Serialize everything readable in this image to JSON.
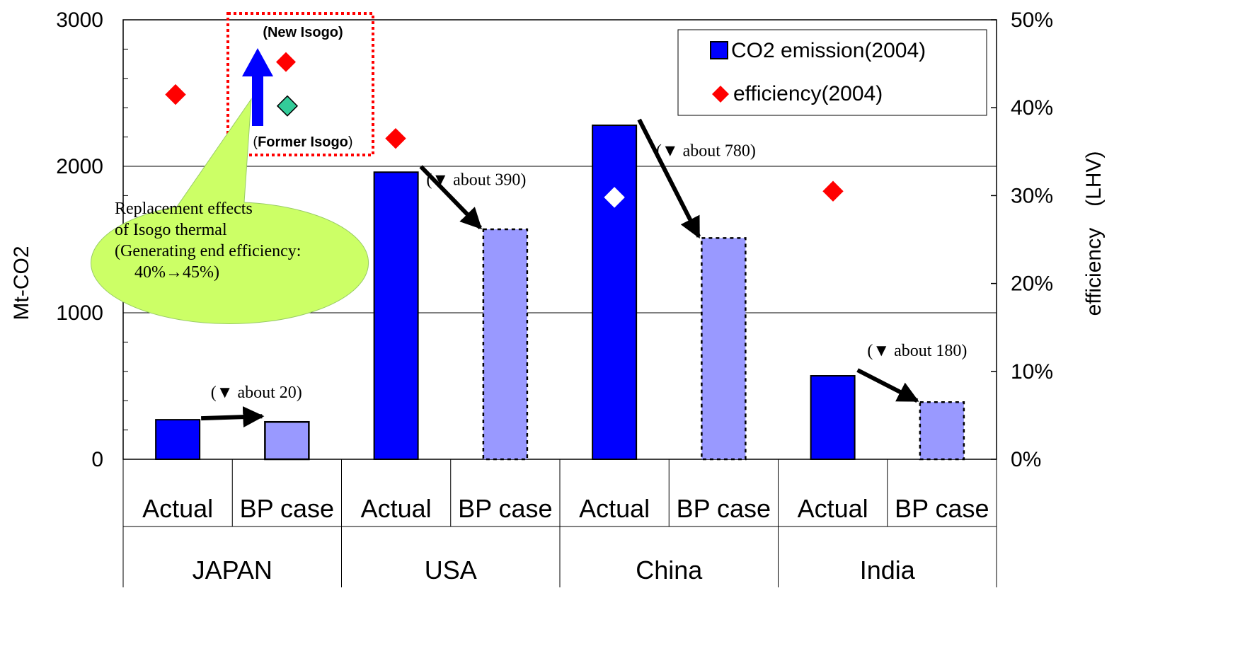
{
  "chart_data": {
    "type": "bar",
    "left_axis": {
      "label": "Mt-CO2",
      "range": [
        0,
        3000
      ],
      "ticks": [
        "0",
        "1000",
        "2000",
        "3000"
      ]
    },
    "right_axis": {
      "label": "efficiency　(LHV)",
      "range": [
        0,
        0.5
      ],
      "ticks": [
        "0%",
        "10%",
        "20%",
        "30%",
        "40%",
        "50%"
      ]
    },
    "group_labels": [
      "JAPAN",
      "USA",
      "China",
      "India"
    ],
    "case_labels": [
      "Actual",
      "BP case"
    ],
    "series": [
      {
        "name": "CO2 emission(2004)",
        "kind": "bar",
        "actual_values": [
          270,
          1960,
          2280,
          570
        ],
        "bp_values": [
          255,
          1570,
          1510,
          390
        ],
        "actual_color": "#0000ff",
        "bp_color": "#9999ff"
      },
      {
        "name": "efficiency(2004)",
        "kind": "marker",
        "values": [
          0.415,
          0.365,
          0.298,
          0.305
        ],
        "colors": [
          "#ff0000",
          "#ff0000",
          "#ffffff",
          "#ff0000"
        ]
      }
    ],
    "reductions": [
      "(▼ about 20)",
      "(▼ about 390)",
      "(▼ about 780)",
      "(▼ about 180)"
    ],
    "annotation": {
      "new_label": "(New Isogo)",
      "former_label_open": "(",
      "former_label": "Former Isogo",
      "former_label_close": ")",
      "new_value": 0.452,
      "former_value": 0.402,
      "callout_lines": [
        "Replacement effects",
        "of Isogo thermal",
        "(Generating end efficiency:",
        "40%→45%)"
      ],
      "callout_color": "#ccff66",
      "box_color": "#ff0000",
      "arrow_color": "#0000ff",
      "former_marker_color": "#33cc99"
    },
    "legend_position": "top-right",
    "grid": true
  }
}
